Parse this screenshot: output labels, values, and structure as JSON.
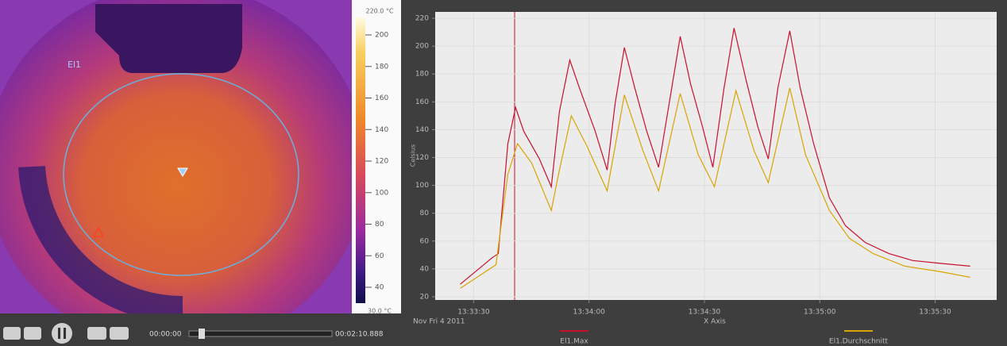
{
  "image": {
    "label": "El1"
  },
  "colorbar": {
    "top_label": "220.0 °C",
    "bottom_label": "30.0 °C",
    "ticks": [
      200,
      180,
      160,
      140,
      120,
      100,
      80,
      60,
      40
    ]
  },
  "player": {
    "time_current": "00:00:00",
    "time_total": "00:02:10.888"
  },
  "chart_data": {
    "type": "line",
    "y_label": "Celsius",
    "x_label": "X Axis",
    "date_label": "Nov Fri 4 2011",
    "xlim": [
      48800,
      48946
    ],
    "xticks": [
      {
        "value": 48810,
        "label": "13:33:30"
      },
      {
        "value": 48840,
        "label": "13:34:00"
      },
      {
        "value": 48870,
        "label": "13:34:30"
      },
      {
        "value": 48900,
        "label": "13:35:00"
      },
      {
        "value": 48930,
        "label": "13:35:30"
      }
    ],
    "ylim": [
      17.7,
      224.6
    ],
    "yticks": [
      20,
      40,
      60,
      80,
      100,
      120,
      140,
      160,
      180,
      200,
      220
    ],
    "grid": true,
    "series": [
      {
        "name": "El1.Max",
        "color": "#c8102e",
        "x": [
          48806.5,
          48814.8,
          48816.4,
          48818.9,
          48820.9,
          48823,
          48827.1,
          48830.2,
          48832.3,
          48835,
          48837.5,
          48841.6,
          48844.7,
          48846.8,
          48849.2,
          48851.9,
          48855,
          48858.1,
          48861.2,
          48863.7,
          48866.4,
          48869.5,
          48872.2,
          48875.1,
          48877.7,
          48880.8,
          48883.9,
          48886.6,
          48889.1,
          48892.2,
          48894.9,
          48898.4,
          48902.5,
          48906.7,
          48911.8,
          48918,
          48924.2,
          48931.4,
          48939.1
        ],
        "values": [
          29,
          48,
          51,
          130,
          156,
          139,
          119,
          99,
          153,
          190,
          170,
          139,
          111,
          159,
          199,
          170,
          139,
          113,
          165,
          207,
          173,
          142,
          113,
          170,
          213,
          176,
          142,
          119,
          170,
          211,
          170,
          130,
          91,
          71,
          59,
          51,
          46,
          44,
          42
        ]
      },
      {
        "name": "El1.Durchschnitt",
        "color": "#d9a400",
        "x": [
          48806.5,
          48815.8,
          48818.9,
          48821.4,
          48825.1,
          48830.2,
          48832.3,
          48835.4,
          48839.5,
          48844.7,
          48849.2,
          48854,
          48858.1,
          48863.7,
          48868.4,
          48872.6,
          48878.2,
          48882.9,
          48886.6,
          48892.2,
          48896.3,
          48902.5,
          48907.7,
          48913.9,
          48922.1,
          48931.4,
          48939.1
        ],
        "values": [
          26,
          43,
          108,
          130,
          116,
          82,
          111,
          150,
          128,
          96,
          165,
          125,
          96,
          166,
          122,
          99,
          168,
          125,
          102,
          170,
          122,
          82,
          62,
          51,
          42,
          38,
          34
        ]
      }
    ]
  }
}
